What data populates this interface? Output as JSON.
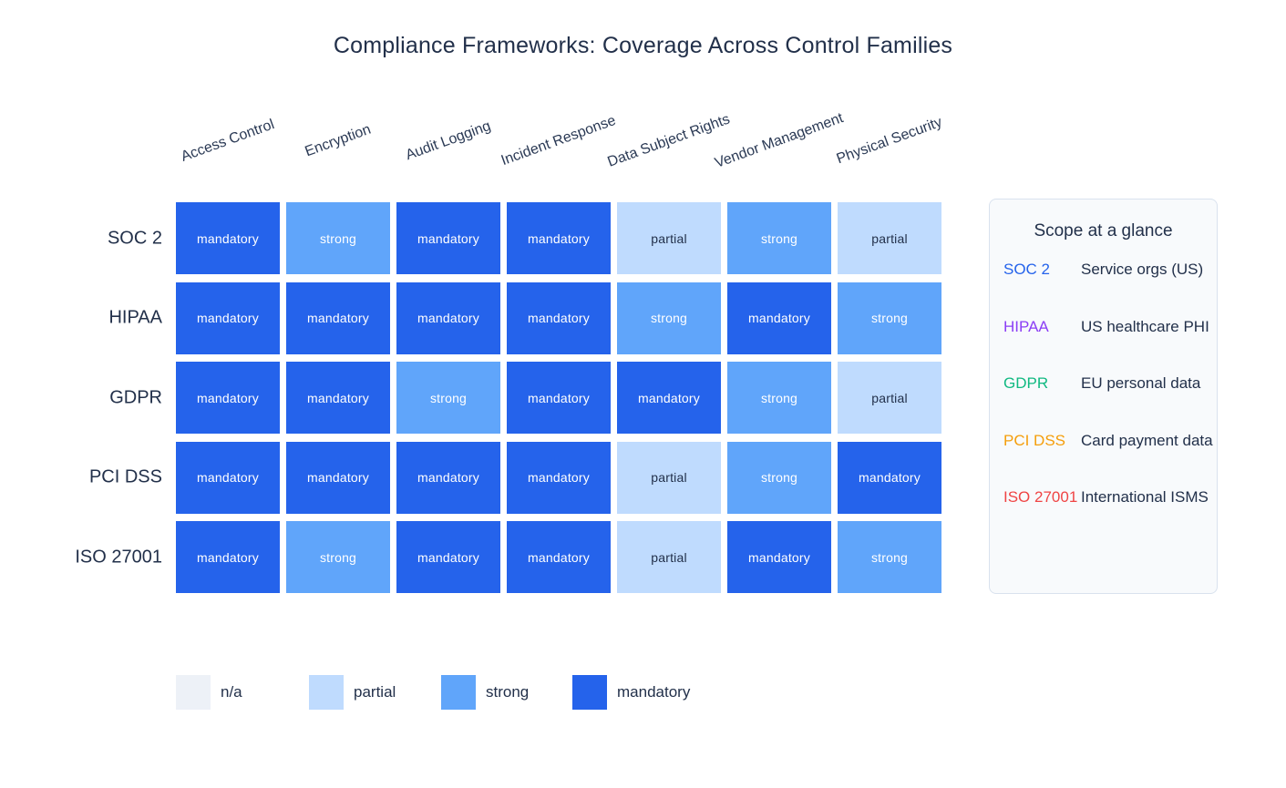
{
  "chart_data": {
    "type": "heatmap",
    "title": "Compliance Frameworks: Coverage Across Control Families",
    "columns": [
      "Access Control",
      "Encryption",
      "Audit Logging",
      "Incident Response",
      "Data Subject Rights",
      "Vendor Management",
      "Physical Security"
    ],
    "rows": [
      "SOC 2",
      "HIPAA",
      "GDPR",
      "PCI DSS",
      "ISO 27001"
    ],
    "values": [
      [
        "mandatory",
        "strong",
        "mandatory",
        "mandatory",
        "partial",
        "strong",
        "partial"
      ],
      [
        "mandatory",
        "mandatory",
        "mandatory",
        "mandatory",
        "strong",
        "mandatory",
        "strong"
      ],
      [
        "mandatory",
        "mandatory",
        "strong",
        "mandatory",
        "mandatory",
        "strong",
        "partial"
      ],
      [
        "mandatory",
        "mandatory",
        "mandatory",
        "mandatory",
        "partial",
        "strong",
        "mandatory"
      ],
      [
        "mandatory",
        "strong",
        "mandatory",
        "mandatory",
        "partial",
        "mandatory",
        "strong"
      ]
    ],
    "levels": [
      {
        "label": "n/a",
        "color": "#edf1f7",
        "text_color": "#22304a"
      },
      {
        "label": "partial",
        "color": "#bfdbfe",
        "text_color": "#22304a"
      },
      {
        "label": "strong",
        "color": "#60a5fa",
        "text_color": "#ffffff"
      },
      {
        "label": "mandatory",
        "color": "#2563eb",
        "text_color": "#ffffff"
      }
    ],
    "legend_position": "bottom",
    "grid": "off"
  },
  "side_panel": {
    "title": "Scope at a glance",
    "items": [
      {
        "framework": "SOC 2",
        "color": "#2563eb",
        "description": "Service orgs (US)"
      },
      {
        "framework": "HIPAA",
        "color": "#8b3ef5",
        "description": "US healthcare PHI"
      },
      {
        "framework": "GDPR",
        "color": "#10b981",
        "description": "EU personal data"
      },
      {
        "framework": "PCI DSS",
        "color": "#f59e0b",
        "description": "Card payment data"
      },
      {
        "framework": "ISO 27001",
        "color": "#ef4444",
        "description": "International ISMS"
      }
    ]
  }
}
